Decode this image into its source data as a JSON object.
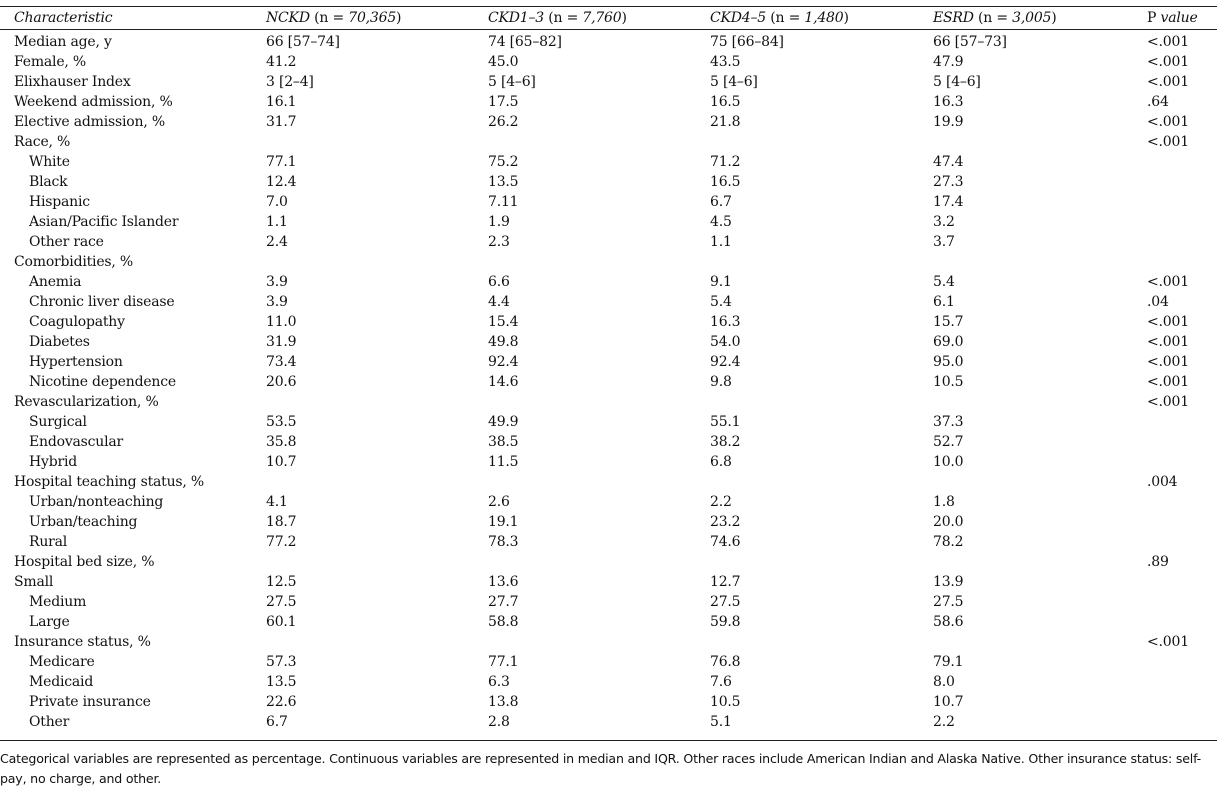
{
  "header": {
    "characteristic": "Characteristic",
    "groups": [
      {
        "name": "NCKD",
        "n": "70,365"
      },
      {
        "name": "CKD1–3",
        "n": "7,760"
      },
      {
        "name": "CKD4–5",
        "n": "1,480"
      },
      {
        "name": "ESRD",
        "n": "3,005"
      }
    ],
    "p_label_a": "P",
    "p_label_b": "value"
  },
  "rows": [
    {
      "label": "Median age, y",
      "indent": false,
      "v": [
        "66 [57–74]",
        "74 [65–82]",
        "75 [66–84]",
        "66 [57–73]"
      ],
      "p": "<.001"
    },
    {
      "label": "Female, %",
      "indent": false,
      "v": [
        "41.2",
        "45.0",
        "43.5",
        "47.9"
      ],
      "p": "<.001"
    },
    {
      "label": "Elixhauser Index",
      "indent": false,
      "v": [
        "3 [2–4]",
        "5 [4–6]",
        "5 [4–6]",
        "5 [4–6]"
      ],
      "p": "<.001"
    },
    {
      "label": "Weekend admission, %",
      "indent": false,
      "v": [
        "16.1",
        "17.5",
        "16.5",
        "16.3"
      ],
      "p": ".64"
    },
    {
      "label": "Elective admission, %",
      "indent": false,
      "v": [
        "31.7",
        "26.2",
        "21.8",
        "19.9"
      ],
      "p": "<.001"
    },
    {
      "label": "Race, %",
      "indent": false,
      "v": [
        "",
        "",
        "",
        ""
      ],
      "p": "<.001"
    },
    {
      "label": "White",
      "indent": true,
      "v": [
        "77.1",
        "75.2",
        "71.2",
        "47.4"
      ],
      "p": ""
    },
    {
      "label": "Black",
      "indent": true,
      "v": [
        "12.4",
        "13.5",
        "16.5",
        "27.3"
      ],
      "p": ""
    },
    {
      "label": "Hispanic",
      "indent": true,
      "v": [
        "7.0",
        "7.11",
        "6.7",
        "17.4"
      ],
      "p": ""
    },
    {
      "label": "Asian/Pacific Islander",
      "indent": true,
      "v": [
        "1.1",
        "1.9",
        "4.5",
        "3.2"
      ],
      "p": ""
    },
    {
      "label": "Other race",
      "indent": true,
      "v": [
        "2.4",
        "2.3",
        "1.1",
        "3.7"
      ],
      "p": ""
    },
    {
      "label": "Comorbidities, %",
      "indent": false,
      "v": [
        "",
        "",
        "",
        ""
      ],
      "p": ""
    },
    {
      "label": "Anemia",
      "indent": true,
      "v": [
        "3.9",
        "6.6",
        "9.1",
        "5.4"
      ],
      "p": "<.001"
    },
    {
      "label": "Chronic liver disease",
      "indent": true,
      "v": [
        "3.9",
        "4.4",
        "5.4",
        "6.1"
      ],
      "p": ".04"
    },
    {
      "label": "Coagulopathy",
      "indent": true,
      "v": [
        "11.0",
        "15.4",
        "16.3",
        "15.7"
      ],
      "p": "<.001"
    },
    {
      "label": "Diabetes",
      "indent": true,
      "v": [
        "31.9",
        "49.8",
        "54.0",
        "69.0"
      ],
      "p": "<.001"
    },
    {
      "label": "Hypertension",
      "indent": true,
      "v": [
        "73.4",
        "92.4",
        "92.4",
        "95.0"
      ],
      "p": "<.001"
    },
    {
      "label": "Nicotine dependence",
      "indent": true,
      "v": [
        "20.6",
        "14.6",
        "9.8",
        "10.5"
      ],
      "p": "<.001"
    },
    {
      "label": "Revascularization, %",
      "indent": false,
      "v": [
        "",
        "",
        "",
        ""
      ],
      "p": "<.001"
    },
    {
      "label": "Surgical",
      "indent": true,
      "v": [
        "53.5",
        "49.9",
        "55.1",
        "37.3"
      ],
      "p": ""
    },
    {
      "label": "Endovascular",
      "indent": true,
      "v": [
        "35.8",
        "38.5",
        "38.2",
        "52.7"
      ],
      "p": ""
    },
    {
      "label": "Hybrid",
      "indent": true,
      "v": [
        "10.7",
        "11.5",
        "6.8",
        "10.0"
      ],
      "p": ""
    },
    {
      "label": "Hospital teaching status, %",
      "indent": false,
      "v": [
        "",
        "",
        "",
        ""
      ],
      "p": ".004"
    },
    {
      "label": "Urban/nonteaching",
      "indent": true,
      "v": [
        "4.1",
        "2.6",
        "2.2",
        "1.8"
      ],
      "p": ""
    },
    {
      "label": "Urban/teaching",
      "indent": true,
      "v": [
        "18.7",
        "19.1",
        "23.2",
        "20.0"
      ],
      "p": ""
    },
    {
      "label": "Rural",
      "indent": true,
      "v": [
        "77.2",
        "78.3",
        "74.6",
        "78.2"
      ],
      "p": ""
    },
    {
      "label": "Hospital bed size, %",
      "indent": false,
      "v": [
        "",
        "",
        "",
        ""
      ],
      "p": ".89"
    },
    {
      "label": "Small",
      "indent": false,
      "v": [
        "12.5",
        "13.6",
        "12.7",
        "13.9"
      ],
      "p": ""
    },
    {
      "label": "Medium",
      "indent": true,
      "v": [
        "27.5",
        "27.7",
        "27.5",
        "27.5"
      ],
      "p": ""
    },
    {
      "label": "Large",
      "indent": true,
      "v": [
        "60.1",
        "58.8",
        "59.8",
        "58.6"
      ],
      "p": ""
    },
    {
      "label": "Insurance status, %",
      "indent": false,
      "v": [
        "",
        "",
        "",
        ""
      ],
      "p": "<.001"
    },
    {
      "label": "Medicare",
      "indent": true,
      "v": [
        "57.3",
        "77.1",
        "76.8",
        "79.1"
      ],
      "p": ""
    },
    {
      "label": "Medicaid",
      "indent": true,
      "v": [
        "13.5",
        "6.3",
        "7.6",
        "8.0"
      ],
      "p": ""
    },
    {
      "label": "Private insurance",
      "indent": true,
      "v": [
        "22.6",
        "13.8",
        "10.5",
        "10.7"
      ],
      "p": ""
    },
    {
      "label": "Other",
      "indent": true,
      "v": [
        "6.7",
        "2.8",
        "5.1",
        "2.2"
      ],
      "p": ""
    }
  ],
  "footnote": "Categorical variables are represented as percentage. Continuous variables are represented in median and IQR. Other races include American Indian and Alaska Native. Other insurance status: self-pay, no charge, and other."
}
